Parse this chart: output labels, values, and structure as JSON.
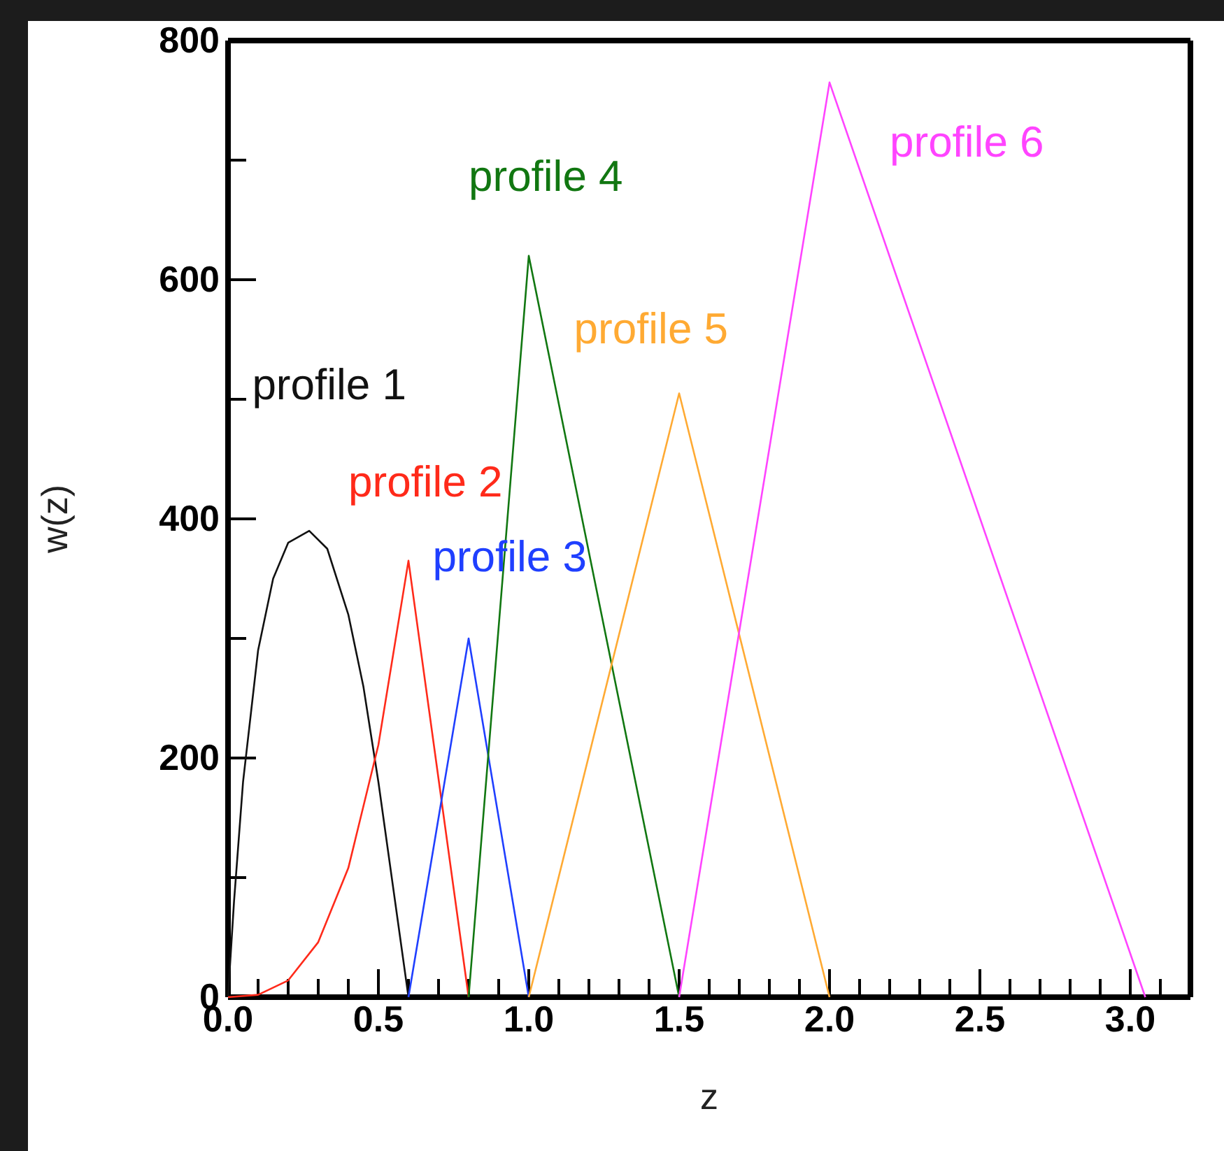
{
  "chart_data": {
    "type": "line",
    "xlabel": "z",
    "ylabel": "w(z)",
    "xlim": [
      0,
      3.2
    ],
    "ylim": [
      0,
      800
    ],
    "xticks": [
      {
        "value": 0,
        "label": "0.0"
      },
      {
        "value": 0.1,
        "label": null
      },
      {
        "value": 0.2,
        "label": null
      },
      {
        "value": 0.3,
        "label": null
      },
      {
        "value": 0.4,
        "label": null
      },
      {
        "value": 0.5,
        "label": "0.5"
      },
      {
        "value": 0.6,
        "label": null
      },
      {
        "value": 0.7,
        "label": null
      },
      {
        "value": 0.8,
        "label": null
      },
      {
        "value": 0.9,
        "label": null
      },
      {
        "value": 1,
        "label": "1.0"
      },
      {
        "value": 1.1,
        "label": null
      },
      {
        "value": 1.2,
        "label": null
      },
      {
        "value": 1.3,
        "label": null
      },
      {
        "value": 1.4,
        "label": null
      },
      {
        "value": 1.5,
        "label": "1.5"
      },
      {
        "value": 1.6,
        "label": null
      },
      {
        "value": 1.7,
        "label": null
      },
      {
        "value": 1.8,
        "label": null
      },
      {
        "value": 1.9,
        "label": null
      },
      {
        "value": 2,
        "label": "2.0"
      },
      {
        "value": 2.1,
        "label": null
      },
      {
        "value": 2.2,
        "label": null
      },
      {
        "value": 2.3,
        "label": null
      },
      {
        "value": 2.4,
        "label": null
      },
      {
        "value": 2.5,
        "label": "2.5"
      },
      {
        "value": 2.6,
        "label": null
      },
      {
        "value": 2.7,
        "label": null
      },
      {
        "value": 2.8,
        "label": null
      },
      {
        "value": 2.9,
        "label": null
      },
      {
        "value": 3,
        "label": "3.0"
      },
      {
        "value": 3.1,
        "label": null
      }
    ],
    "yticks": [
      0,
      {
        "value": 100,
        "label": null
      },
      200,
      {
        "value": 300,
        "label": null
      },
      400,
      {
        "value": 500,
        "label": null
      },
      600,
      {
        "value": 700,
        "label": null
      },
      800
    ],
    "grid": false,
    "legend": false,
    "marker": "none",
    "line_style": "solid",
    "series": [
      {
        "name": "profile 1",
        "color": "#111111",
        "x": [
          0,
          0.02,
          0.05,
          0.1,
          0.15,
          0.2,
          0.27,
          0.33,
          0.4,
          0.45,
          0.5,
          0.55,
          0.6
        ],
        "values": [
          0,
          80,
          180,
          290,
          350,
          380,
          390,
          375,
          320,
          260,
          180,
          90,
          0
        ]
      },
      {
        "name": "profile 2",
        "color": "#ff2a1a",
        "x": [
          0,
          0.1,
          0.2,
          0.3,
          0.4,
          0.5,
          0.6,
          0.8
        ],
        "values": [
          0,
          2,
          14,
          46,
          108,
          211,
          365,
          0
        ]
      },
      {
        "name": "profile 3",
        "color": "#1f3fff",
        "x": [
          0.6,
          0.8,
          1.0
        ],
        "values": [
          0,
          300,
          0
        ]
      },
      {
        "name": "profile 4",
        "color": "#117711",
        "x": [
          0.8,
          1.0,
          1.5
        ],
        "values": [
          0,
          620,
          0
        ]
      },
      {
        "name": "profile 5",
        "color": "#ffaa33",
        "x": [
          1.0,
          1.5,
          2.0
        ],
        "values": [
          0,
          505,
          0
        ]
      },
      {
        "name": "profile 6",
        "color": "#ff44ff",
        "x": [
          1.5,
          2.0,
          3.05
        ],
        "values": [
          0,
          765,
          0
        ]
      }
    ]
  }
}
